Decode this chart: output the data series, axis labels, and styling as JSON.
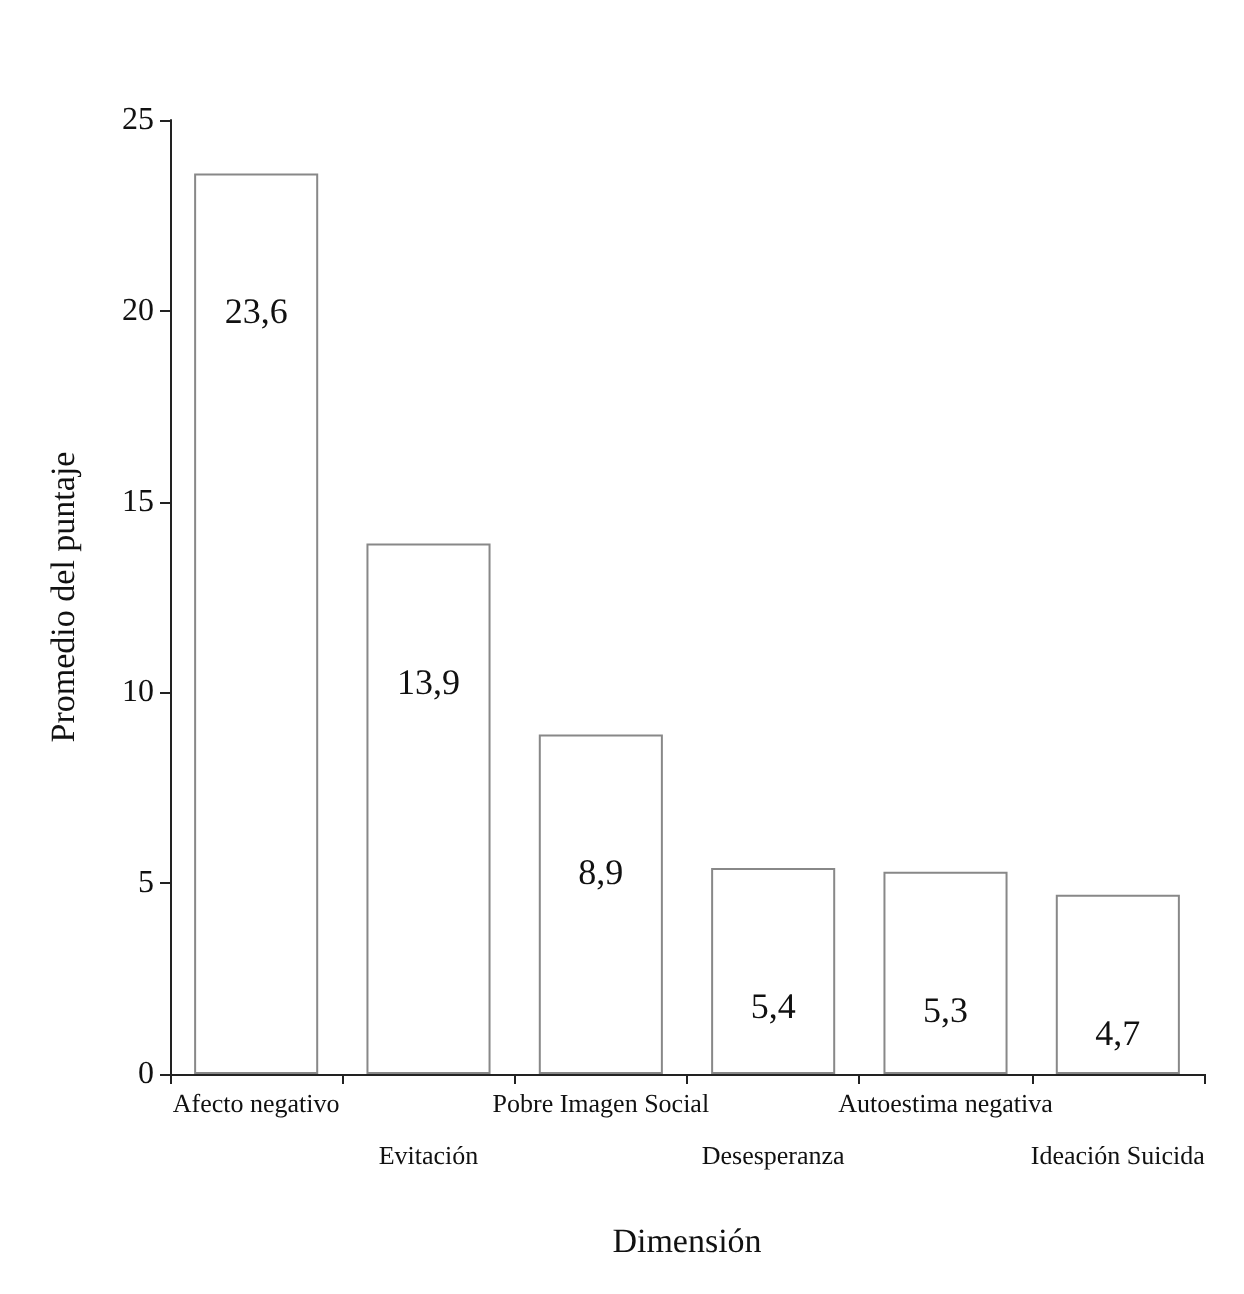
{
  "chart_data": {
    "type": "bar",
    "xlabel": "Dimensión",
    "ylabel": "Promedio del puntaje",
    "categories": [
      "Afecto negativo",
      "Evitación",
      "Pobre Imagen Social",
      "Desesperanza",
      "Autoestima negativa",
      "Ideación Suicida"
    ],
    "values": [
      23.6,
      13.9,
      8.9,
      5.4,
      5.3,
      4.7
    ],
    "value_labels": [
      "23,6",
      "13,9",
      "8,9",
      "5,4",
      "5,3",
      "4,7"
    ],
    "color": "#ffffff",
    "ylim": [
      0,
      25
    ],
    "yticks": [
      0,
      5,
      10,
      15,
      20,
      25
    ],
    "grid": false
  }
}
